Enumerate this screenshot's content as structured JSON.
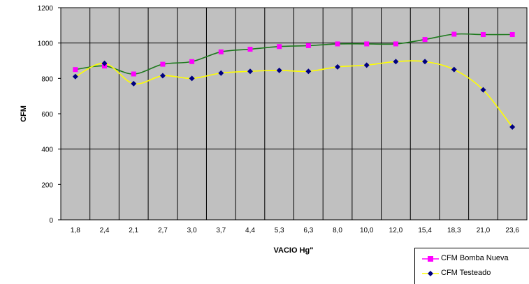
{
  "chart_data": {
    "type": "line",
    "title": "",
    "xlabel": "VACIO Hg\"",
    "ylabel": "CFM",
    "ylim": [
      0,
      1200
    ],
    "yticks": [
      "0",
      "200",
      "400",
      "600",
      "800",
      "1000",
      "1200"
    ],
    "categories": [
      "1,8",
      "2,4",
      "2,1",
      "2,7",
      "3,0",
      "3,7",
      "4,4",
      "5,3",
      "6,3",
      "8,0",
      "10,0",
      "12,0",
      "15,4",
      "18,3",
      "21,0",
      "23,6"
    ],
    "grid": true,
    "legend_position": "bottom-right",
    "plot_background": "#c0c0c0",
    "series": [
      {
        "name": "CFM Bomba Nueva",
        "marker": "square",
        "marker_color": "#ff00ff",
        "line_color": "#1e7a1e",
        "values": [
          850,
          870,
          825,
          880,
          895,
          950,
          965,
          980,
          985,
          995,
          995,
          995,
          1020,
          1050,
          1048,
          1048
        ]
      },
      {
        "name": "CFM Testeado",
        "marker": "diamond",
        "marker_color": "#000080",
        "line_color": "#ffff00",
        "values": [
          810,
          885,
          770,
          815,
          800,
          830,
          840,
          845,
          840,
          865,
          875,
          895,
          895,
          850,
          735,
          525
        ]
      }
    ]
  }
}
